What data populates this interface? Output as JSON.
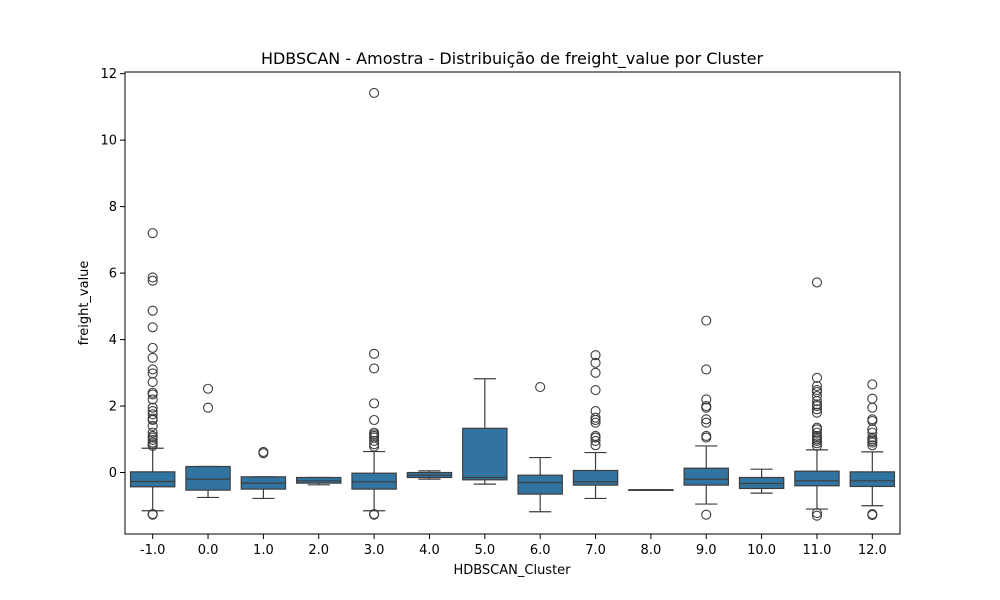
{
  "chart_data": {
    "type": "box",
    "title": "HDBSCAN - Amostra - Distribuição de freight_value por Cluster",
    "xlabel": "HDBSCAN_Cluster",
    "ylabel": "freight_value",
    "ylim": [
      -1.85,
      12.05
    ],
    "yticks": [
      0,
      2,
      4,
      6,
      8,
      10,
      12
    ],
    "ytick_labels": [
      "0",
      "2",
      "4",
      "6",
      "8",
      "10",
      "12"
    ],
    "box_color": "#3274a1",
    "line_color": "#3d3d3d",
    "grid": false,
    "categories": [
      "-1.0",
      "0.0",
      "1.0",
      "2.0",
      "3.0",
      "4.0",
      "5.0",
      "6.0",
      "7.0",
      "8.0",
      "9.0",
      "10.0",
      "11.0",
      "12.0"
    ],
    "boxes": [
      {
        "category": "-1.0",
        "q1": -0.43,
        "median": -0.27,
        "q3": 0.02,
        "whisker_low": -1.15,
        "whisker_high": 0.73,
        "outliers": [
          7.2,
          5.87,
          5.77,
          4.87,
          4.37,
          3.75,
          3.45,
          3.1,
          2.98,
          2.72,
          2.4,
          2.35,
          2.2,
          1.95,
          1.85,
          1.75,
          1.62,
          1.58,
          1.4,
          1.2,
          1.1,
          1.05,
          0.98,
          0.9,
          0.85,
          0.8,
          -1.27,
          -1.25
        ]
      },
      {
        "category": "0.0",
        "q1": -0.53,
        "median": -0.2,
        "q3": 0.18,
        "whisker_low": -0.75,
        "whisker_high": 0.18,
        "outliers": [
          2.52,
          1.95
        ]
      },
      {
        "category": "1.0",
        "q1": -0.5,
        "median": -0.32,
        "q3": -0.13,
        "whisker_low": -0.78,
        "whisker_high": -0.13,
        "outliers": [
          0.62,
          0.58
        ]
      },
      {
        "category": "2.0",
        "q1": -0.32,
        "median": -0.25,
        "q3": -0.15,
        "whisker_low": -0.37,
        "whisker_high": -0.15,
        "outliers": []
      },
      {
        "category": "3.0",
        "q1": -0.5,
        "median": -0.28,
        "q3": -0.02,
        "whisker_low": -1.15,
        "whisker_high": 0.63,
        "outliers": [
          11.42,
          3.57,
          3.13,
          2.08,
          1.58,
          1.2,
          1.15,
          1.1,
          1.05,
          0.95,
          0.85,
          0.78,
          -1.25,
          -1.27
        ]
      },
      {
        "category": "4.0",
        "q1": -0.15,
        "median": -0.08,
        "q3": 0.0,
        "whisker_low": -0.2,
        "whisker_high": 0.05,
        "outliers": []
      },
      {
        "category": "5.0",
        "q1": -0.22,
        "median": -0.15,
        "q3": 1.33,
        "whisker_low": -0.35,
        "whisker_high": 2.82,
        "outliers": []
      },
      {
        "category": "6.0",
        "q1": -0.65,
        "median": -0.3,
        "q3": -0.08,
        "whisker_low": -1.18,
        "whisker_high": 0.45,
        "outliers": [
          2.57
        ]
      },
      {
        "category": "7.0",
        "q1": -0.38,
        "median": -0.28,
        "q3": 0.06,
        "whisker_low": -0.78,
        "whisker_high": 0.6,
        "outliers": [
          3.53,
          3.3,
          3.0,
          2.48,
          1.85,
          1.65,
          1.58,
          1.5,
          1.1,
          1.05,
          0.95,
          0.82
        ]
      },
      {
        "category": "8.0",
        "q1": -0.52,
        "median": -0.52,
        "q3": -0.52,
        "whisker_low": -0.52,
        "whisker_high": -0.52,
        "outliers": []
      },
      {
        "category": "9.0",
        "q1": -0.38,
        "median": -0.2,
        "q3": 0.13,
        "whisker_low": -0.95,
        "whisker_high": 0.8,
        "outliers": [
          4.57,
          3.1,
          2.2,
          2.0,
          1.95,
          1.6,
          1.5,
          1.1,
          1.05,
          -1.27
        ]
      },
      {
        "category": "10.0",
        "q1": -0.48,
        "median": -0.33,
        "q3": -0.15,
        "whisker_low": -0.62,
        "whisker_high": 0.1,
        "outliers": []
      },
      {
        "category": "11.0",
        "q1": -0.4,
        "median": -0.25,
        "q3": 0.04,
        "whisker_low": -1.1,
        "whisker_high": 0.68,
        "outliers": [
          5.72,
          2.85,
          2.6,
          2.48,
          2.42,
          2.3,
          2.15,
          2.05,
          2.0,
          1.9,
          1.8,
          1.35,
          1.3,
          1.2,
          1.1,
          1.05,
          1.0,
          0.95,
          0.88,
          0.8,
          -1.22,
          -1.3
        ]
      },
      {
        "category": "12.0",
        "q1": -0.42,
        "median": -0.25,
        "q3": 0.02,
        "whisker_low": -1.0,
        "whisker_high": 0.62,
        "outliers": [
          2.65,
          2.22,
          1.95,
          1.6,
          1.55,
          1.3,
          1.2,
          1.05,
          1.0,
          0.95,
          0.9,
          0.82,
          -1.25,
          -1.28
        ]
      }
    ]
  }
}
